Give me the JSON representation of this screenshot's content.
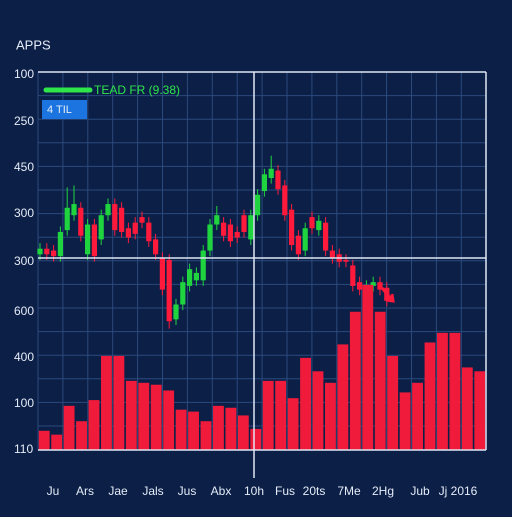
{
  "title": "APPS",
  "x_tick_labels": [
    "Ju",
    "Ars",
    "Jae",
    "Jals",
    "Jus",
    "Abx",
    "10h",
    "Fus",
    "20ts",
    "7Me",
    "2Hg",
    "Jub",
    "Jj 2016"
  ],
  "chart_data": [
    {
      "type": "candlestick",
      "legend": {
        "name": "TEAD FR (9.38)",
        "color": "#2ee64a"
      },
      "badge": "4 TIL",
      "y_labels": [
        "100",
        "250",
        "450",
        "300",
        "300"
      ],
      "up_color": "#1fd43f",
      "down_color": "#ff1a3c",
      "ylim": [
        0,
        100
      ],
      "open": [
        2,
        5,
        4,
        1,
        15,
        23,
        27,
        2,
        18,
        10,
        23,
        29,
        27,
        16,
        19,
        22,
        19,
        10,
        0,
        -1,
        -33,
        -25,
        -15,
        -12,
        -12,
        4,
        18,
        19,
        18,
        14,
        23,
        10,
        23,
        36,
        43,
        47,
        39,
        26,
        12,
        4,
        22,
        15,
        19,
        4,
        2,
        -1,
        -4,
        -13,
        -18,
        -15,
        -13,
        -16
      ],
      "close": [
        5,
        2,
        1,
        14,
        27,
        29,
        12,
        18,
        1,
        23,
        29,
        15,
        14,
        11,
        13,
        19,
        9,
        2,
        -17,
        -34,
        -25,
        -13,
        -6,
        -8,
        4,
        18,
        23,
        12,
        9,
        11,
        14,
        23,
        34,
        45,
        48,
        37,
        23,
        7,
        2,
        16,
        16,
        20,
        4,
        0,
        -2,
        -2,
        -15,
        -17,
        -15,
        -13,
        -17,
        -23
      ],
      "high": [
        8,
        8,
        7,
        17,
        38,
        39,
        30,
        21,
        21,
        26,
        32,
        32,
        30,
        19,
        22,
        25,
        22,
        13,
        3,
        2,
        -22,
        -10,
        -3,
        -5,
        7,
        21,
        28,
        22,
        21,
        17,
        26,
        26,
        37,
        48,
        55,
        50,
        42,
        29,
        15,
        19,
        25,
        23,
        22,
        7,
        5,
        2,
        -1,
        -10,
        -12,
        -10,
        -10,
        -13
      ],
      "low": [
        -1,
        -1,
        -2,
        -2,
        12,
        20,
        9,
        -1,
        -2,
        7,
        20,
        12,
        11,
        8,
        10,
        16,
        6,
        -1,
        -20,
        -38,
        -36,
        -28,
        -18,
        -15,
        -15,
        1,
        15,
        9,
        6,
        8,
        11,
        7,
        20,
        33,
        40,
        34,
        20,
        4,
        -1,
        1,
        13,
        12,
        1,
        -3,
        -5,
        -5,
        -18,
        -20,
        -21,
        -18,
        -20,
        -26
      ]
    },
    {
      "type": "bar",
      "y_labels": [
        "600",
        "400",
        "100",
        "110"
      ],
      "color": "#f01a3a",
      "ylim": [
        0,
        100
      ],
      "values": [
        10,
        8,
        23,
        15,
        26,
        49,
        49,
        36,
        35,
        34,
        31,
        21,
        20,
        15,
        23,
        22,
        18,
        11,
        36,
        36,
        27,
        48,
        41,
        35,
        55,
        72,
        86,
        72,
        49,
        30,
        35,
        56,
        61,
        61,
        43,
        41
      ]
    }
  ]
}
